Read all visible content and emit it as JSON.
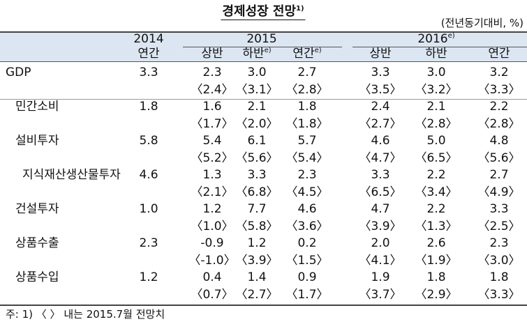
{
  "title": "경제성장 전망",
  "title_note": "1)",
  "unit": "(전년동기대비, %)",
  "header": {
    "years": [
      {
        "text": "2014"
      },
      {
        "text": "2015"
      },
      {
        "text": "2016",
        "sup": "e)"
      }
    ],
    "periods": [
      {
        "text": "연간"
      },
      {
        "text": "상반"
      },
      {
        "text": "하반",
        "sup": "e)"
      },
      {
        "text": "연간",
        "sup": "e)"
      },
      {
        "text": "상반"
      },
      {
        "text": "하반"
      },
      {
        "text": "연간"
      }
    ]
  },
  "rows": [
    {
      "label": "GDP",
      "values": [
        "3.3",
        "2.3",
        "3.0",
        "2.7",
        "3.3",
        "3.0",
        "3.2"
      ],
      "previous": [
        "〈2.4〉",
        "〈3.1〉",
        "〈2.8〉",
        "〈3.5〉",
        "〈3.2〉",
        "〈3.3〉"
      ]
    },
    {
      "label": "민간소비",
      "values": [
        "1.8",
        "1.6",
        "2.1",
        "1.8",
        "2.4",
        "2.1",
        "2.2"
      ],
      "previous": [
        "〈1.7〉",
        "〈2.0〉",
        "〈1.8〉",
        "〈2.7〉",
        "〈2.8〉",
        "〈2.8〉"
      ]
    },
    {
      "label": "설비투자",
      "values": [
        "5.8",
        "5.4",
        "6.1",
        "5.7",
        "4.6",
        "5.0",
        "4.8"
      ],
      "previous": [
        "〈5.2〉",
        "〈5.6〉",
        "〈5.4〉",
        "〈4.7〉",
        "〈6.5〉",
        "〈5.6〉"
      ]
    },
    {
      "label": "지식재산생산물투자",
      "values": [
        "4.6",
        "1.3",
        "3.3",
        "2.3",
        "3.3",
        "2.2",
        "2.7"
      ],
      "previous": [
        "〈2.1〉",
        "〈6.8〉",
        "〈4.5〉",
        "〈6.5〉",
        "〈3.4〉",
        "〈4.9〉"
      ]
    },
    {
      "label": "건설투자",
      "values": [
        "1.0",
        "1.2",
        "7.7",
        "4.6",
        "4.7",
        "2.2",
        "3.3"
      ],
      "previous": [
        "〈1.0〉",
        "〈5.8〉",
        "〈3.6〉",
        "〈3.9〉",
        "〈1.3〉",
        "〈2.5〉"
      ]
    },
    {
      "label": "상품수출",
      "values": [
        "2.3",
        "-0.9",
        "1.2",
        "0.2",
        "2.0",
        "2.6",
        "2.3"
      ],
      "previous": [
        "〈-1.0〉",
        "〈3.9〉",
        "〈1.5〉",
        "〈4.1〉",
        "〈1.9〉",
        "〈3.0〉"
      ]
    },
    {
      "label": "상품수입",
      "values": [
        "1.2",
        "0.4",
        "1.4",
        "0.9",
        "1.9",
        "1.8",
        "1.8"
      ],
      "previous": [
        "〈0.7〉",
        "〈2.7〉",
        "〈1.7〉",
        "〈3.7〉",
        "〈2.9〉",
        "〈3.3〉"
      ]
    }
  ],
  "footnote": "주: 1) 〈  〉 내는 2015.7월 전망치"
}
